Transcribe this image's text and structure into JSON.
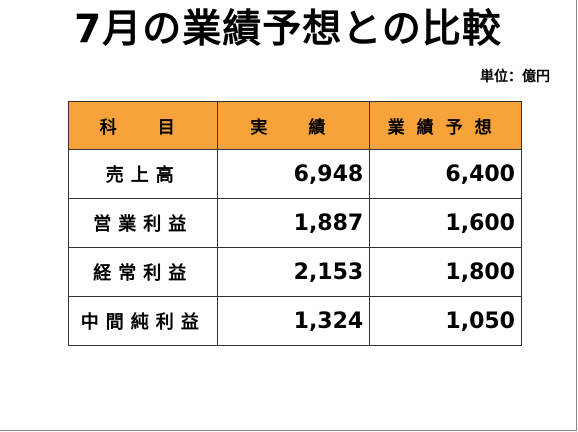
{
  "title": "7月の業績予想との比較",
  "unit_label": "単位：億円",
  "table": {
    "headers": [
      "科　目",
      "実　績",
      "業績予想"
    ],
    "rows": [
      {
        "item": "売上高",
        "actual": "6,948",
        "forecast": "6,400"
      },
      {
        "item": "営業利益",
        "actual": "1,887",
        "forecast": "1,600"
      },
      {
        "item": "経常利益",
        "actual": "2,153",
        "forecast": "1,800"
      },
      {
        "item": "中間純利益",
        "actual": "1,324",
        "forecast": "1,050"
      }
    ]
  },
  "colors": {
    "header_bg": "#f7a23b",
    "border": "#333333"
  }
}
